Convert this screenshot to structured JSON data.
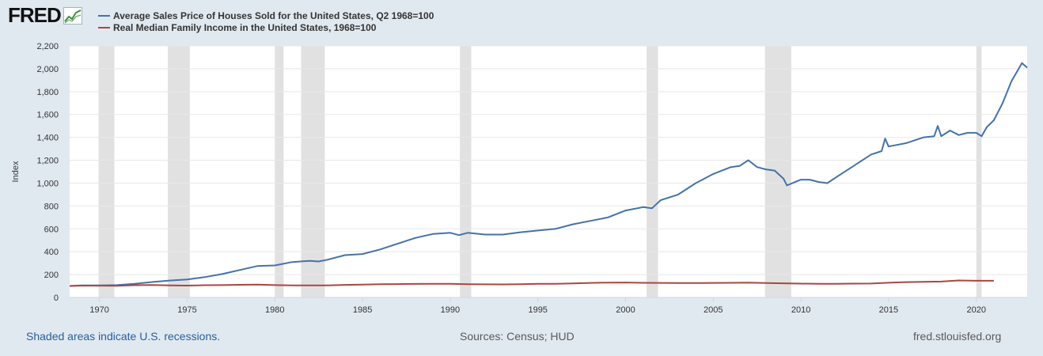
{
  "brand": {
    "name": "FRED",
    "icon": "chart-line-icon"
  },
  "legend": [
    {
      "label": "Average Sales Price of Houses Sold for the United States, Q2 1968=100",
      "color": "#4572a7"
    },
    {
      "label": "Real Median Family Income in the United States, 1968=100",
      "color": "#aa4643"
    }
  ],
  "footer": {
    "note": "Shaded areas indicate U.S. recessions.",
    "sources": "Sources: Census; HUD",
    "site": "fred.stlouisfed.org"
  },
  "chart_data": {
    "type": "line",
    "ylabel": "Index",
    "xlabel": "",
    "xlim": [
      1968.3,
      2022.9
    ],
    "ylim": [
      0,
      2200
    ],
    "yticks": [
      0,
      200,
      400,
      600,
      800,
      1000,
      1200,
      1400,
      1600,
      1800,
      2000,
      2200
    ],
    "ytick_labels": [
      "0",
      "200",
      "400",
      "600",
      "800",
      "1,000",
      "1,200",
      "1,400",
      "1,600",
      "1,800",
      "2,000",
      "2,200"
    ],
    "xticks": [
      1970,
      1975,
      1980,
      1985,
      1990,
      1995,
      2000,
      2005,
      2010,
      2015,
      2020
    ],
    "xtick_labels": [
      "1970",
      "1975",
      "1980",
      "1985",
      "1990",
      "1995",
      "2000",
      "2005",
      "2010",
      "2015",
      "2020"
    ],
    "grid": true,
    "legend_position": "top-left",
    "recessions": [
      [
        1969.95,
        1970.85
      ],
      [
        1973.9,
        1975.15
      ],
      [
        1980.0,
        1980.5
      ],
      [
        1981.5,
        1982.85
      ],
      [
        1990.55,
        1991.2
      ],
      [
        2001.2,
        2001.85
      ],
      [
        2007.95,
        2009.45
      ],
      [
        2020.0,
        2020.3
      ]
    ],
    "series": [
      {
        "name": "Average Sales Price of Houses Sold for the United States, Q2 1968=100",
        "color": "#4572a7",
        "x": [
          1968.3,
          1969,
          1970,
          1971,
          1972,
          1973,
          1974,
          1975,
          1976,
          1977,
          1978,
          1979,
          1980,
          1981,
          1982,
          1982.5,
          1983,
          1984,
          1985,
          1986,
          1987,
          1988,
          1989,
          1990,
          1990.5,
          1991,
          1992,
          1993,
          1994,
          1995,
          1996,
          1997,
          1998,
          1999,
          2000,
          2001,
          2001.5,
          2002,
          2003,
          2004,
          2005,
          2006,
          2006.5,
          2007,
          2007.5,
          2008,
          2008.5,
          2009,
          2009.2,
          2010,
          2010.5,
          2011,
          2011.5,
          2012,
          2013,
          2014,
          2014.6,
          2014.8,
          2015,
          2016,
          2017,
          2017.6,
          2017.8,
          2018,
          2018.5,
          2019,
          2019.5,
          2020,
          2020.3,
          2020.6,
          2021,
          2021.5,
          2022,
          2022.6,
          2022.9
        ],
        "values": [
          100,
          105,
          105,
          108,
          120,
          135,
          148,
          158,
          178,
          205,
          240,
          275,
          280,
          310,
          320,
          315,
          330,
          370,
          380,
          420,
          470,
          520,
          555,
          565,
          545,
          565,
          550,
          550,
          570,
          585,
          600,
          640,
          670,
          700,
          760,
          790,
          780,
          850,
          900,
          1000,
          1080,
          1140,
          1150,
          1200,
          1140,
          1120,
          1110,
          1040,
          980,
          1030,
          1030,
          1010,
          1000,
          1050,
          1150,
          1250,
          1280,
          1390,
          1320,
          1350,
          1400,
          1410,
          1500,
          1410,
          1460,
          1420,
          1440,
          1440,
          1410,
          1490,
          1550,
          1700,
          1890,
          2050,
          2010
        ]
      },
      {
        "name": "Real Median Family Income in the United States, 1968=100",
        "color": "#aa4643",
        "x": [
          1968.3,
          1969,
          1970,
          1971,
          1972,
          1973,
          1974,
          1975,
          1976,
          1977,
          1978,
          1979,
          1980,
          1981,
          1982,
          1983,
          1984,
          1985,
          1986,
          1987,
          1988,
          1989,
          1990,
          1991,
          1992,
          1993,
          1994,
          1995,
          1996,
          1997,
          1998,
          1999,
          2000,
          2001,
          2002,
          2003,
          2004,
          2005,
          2006,
          2007,
          2008,
          2009,
          2010,
          2011,
          2012,
          2013,
          2014,
          2015,
          2016,
          2017,
          2018,
          2019,
          2020,
          2021
        ],
        "values": [
          100,
          104,
          103,
          102,
          107,
          109,
          106,
          104,
          107,
          108,
          111,
          112,
          108,
          106,
          105,
          106,
          110,
          112,
          116,
          117,
          118,
          120,
          119,
          116,
          115,
          114,
          116,
          119,
          120,
          123,
          127,
          130,
          131,
          128,
          127,
          126,
          126,
          127,
          128,
          130,
          126,
          124,
          121,
          119,
          119,
          121,
          122,
          129,
          134,
          137,
          139,
          149,
          146,
          146
        ]
      }
    ]
  }
}
